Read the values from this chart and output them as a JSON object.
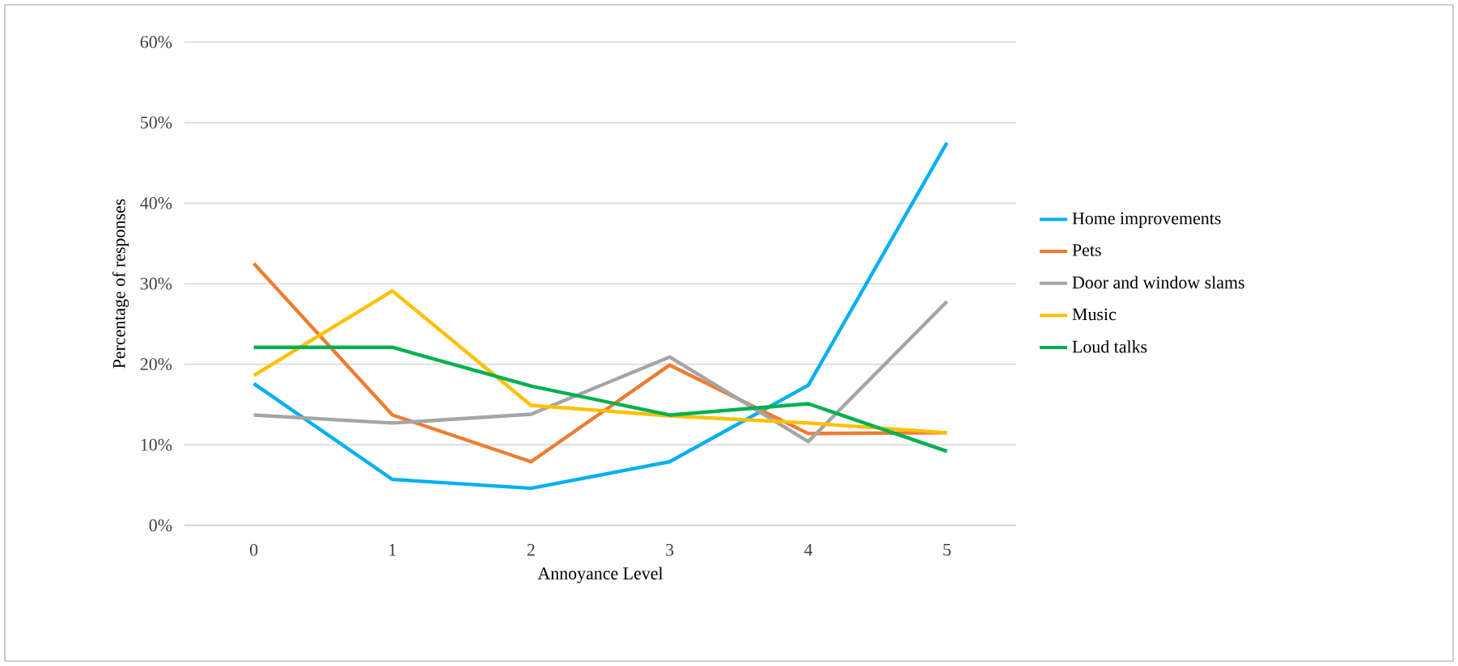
{
  "chart_data": {
    "type": "line",
    "xlabel": "Annoyance Level",
    "ylabel": "Percentage of responses",
    "categories": [
      "0",
      "1",
      "2",
      "3",
      "4",
      "5"
    ],
    "series": [
      {
        "name": "Home improvements",
        "color": "#00b0f0",
        "values": [
          17.6,
          5.7,
          4.6,
          7.9,
          17.4,
          47.5
        ]
      },
      {
        "name": "Pets",
        "color": "#ed7d31",
        "values": [
          32.5,
          13.7,
          7.9,
          19.9,
          11.4,
          11.5
        ]
      },
      {
        "name": "Door and window slams",
        "color": "#a5a5a5",
        "values": [
          13.7,
          12.7,
          13.8,
          20.9,
          10.4,
          27.8
        ]
      },
      {
        "name": "Music",
        "color": "#ffc000",
        "values": [
          18.6,
          29.1,
          14.9,
          13.6,
          12.7,
          11.5
        ]
      },
      {
        "name": "Loud talks",
        "color": "#00b050",
        "values": [
          22.1,
          22.1,
          17.3,
          13.7,
          15.1,
          9.2
        ]
      }
    ],
    "ylim": [
      0,
      60
    ],
    "yticks": [
      {
        "value": 0,
        "label": "0%"
      },
      {
        "value": 10,
        "label": "10%"
      },
      {
        "value": 20,
        "label": "20%"
      },
      {
        "value": 30,
        "label": "30%"
      },
      {
        "value": 40,
        "label": "40%"
      },
      {
        "value": 50,
        "label": "50%"
      },
      {
        "value": 60,
        "label": "60%"
      }
    ],
    "grid": "y",
    "legend": "right"
  }
}
